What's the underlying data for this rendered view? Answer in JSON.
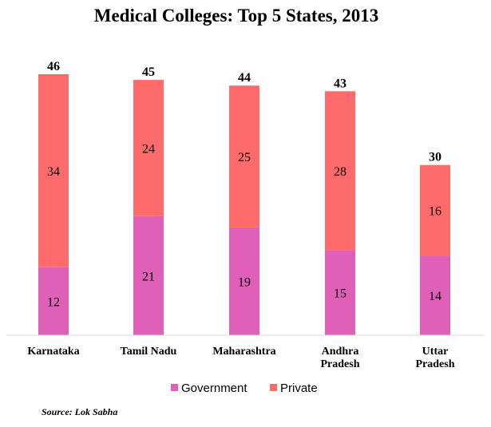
{
  "chart_data": {
    "type": "bar",
    "stacked": true,
    "title": "Medical Colleges: Top 5 States, 2013",
    "categories": [
      "Karnataka",
      "Tamil Nadu",
      "Maharashtra",
      "Andhra Pradesh",
      "Uttar Pradesh"
    ],
    "series": [
      {
        "name": "Government",
        "color": "#e05fb7",
        "values": [
          12,
          21,
          19,
          15,
          14
        ]
      },
      {
        "name": "Private",
        "color": "#ff6b6b",
        "values": [
          34,
          24,
          25,
          28,
          16
        ]
      }
    ],
    "totals": [
      46,
      45,
      44,
      43,
      30
    ],
    "ylim": [
      0,
      46
    ],
    "grid": false,
    "legend_position": "bottom",
    "source": "Source: Lok Sabha"
  }
}
